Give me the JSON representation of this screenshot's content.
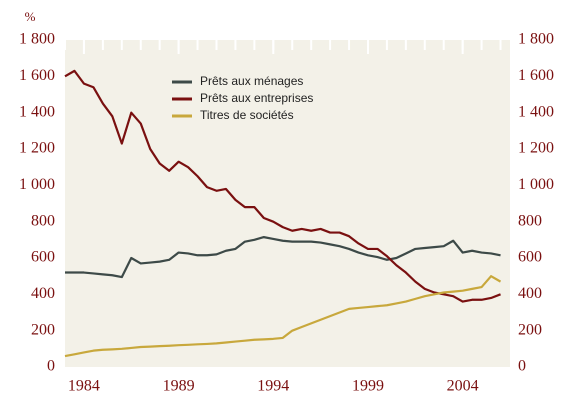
{
  "chart_data": {
    "type": "line",
    "y_unit": "%",
    "x": [
      1983,
      1983.5,
      1984,
      1984.5,
      1985,
      1985.5,
      1986,
      1986.5,
      1987,
      1987.5,
      1988,
      1988.5,
      1989,
      1989.5,
      1990,
      1990.5,
      1991,
      1991.5,
      1992,
      1992.5,
      1993,
      1993.5,
      1994,
      1994.5,
      1995,
      1995.5,
      1996,
      1996.5,
      1997,
      1997.5,
      1998,
      1998.5,
      1999,
      1999.5,
      2000,
      2000.5,
      2001,
      2001.5,
      2002,
      2002.5,
      2003,
      2003.5,
      2004,
      2004.5,
      2005,
      2005.5,
      2006
    ],
    "series": [
      {
        "name": "Prêts aux ménages",
        "color": "#3d4a48",
        "values": [
          520,
          520,
          520,
          515,
          510,
          505,
          495,
          600,
          570,
          575,
          580,
          590,
          630,
          625,
          615,
          615,
          620,
          640,
          650,
          690,
          700,
          715,
          705,
          695,
          690,
          690,
          690,
          685,
          675,
          665,
          650,
          630,
          615,
          605,
          590,
          600,
          625,
          650,
          655,
          660,
          665,
          695,
          630,
          640,
          630,
          625,
          615
        ]
      },
      {
        "name": "Prêts aux entreprises",
        "color": "#7a1010",
        "values": [
          1600,
          1630,
          1560,
          1540,
          1450,
          1380,
          1230,
          1400,
          1340,
          1200,
          1120,
          1080,
          1130,
          1100,
          1050,
          990,
          970,
          980,
          920,
          880,
          880,
          820,
          800,
          770,
          750,
          760,
          750,
          760,
          740,
          740,
          720,
          680,
          650,
          650,
          610,
          560,
          520,
          470,
          430,
          410,
          400,
          390,
          360,
          370,
          370,
          380,
          400
        ]
      },
      {
        "name": "Titres de sociétés",
        "color": "#c8a83c",
        "values": [
          60,
          70,
          80,
          90,
          95,
          97,
          100,
          105,
          110,
          112,
          115,
          117,
          120,
          122,
          125,
          127,
          130,
          135,
          140,
          145,
          150,
          152,
          155,
          160,
          200,
          220,
          240,
          260,
          280,
          300,
          320,
          325,
          330,
          335,
          340,
          350,
          360,
          375,
          390,
          400,
          410,
          415,
          420,
          430,
          440,
          500,
          470
        ]
      }
    ],
    "xlim": [
      1983,
      2006.5
    ],
    "xticks": [
      1984,
      1989,
      1994,
      1999,
      2004
    ],
    "ylim": [
      0,
      1800
    ],
    "yticks": [
      0,
      200,
      400,
      600,
      800,
      {
        "value": 1000,
        "label": "1 000"
      },
      {
        "value": 1200,
        "label": "1 200"
      },
      {
        "value": 1400,
        "label": "1 400"
      },
      {
        "value": 1600,
        "label": "1 600"
      },
      {
        "value": 1800,
        "label": "1 800"
      }
    ],
    "y2lim": [
      0,
      1800
    ],
    "y2ticks": [
      0,
      200,
      400,
      600,
      800,
      {
        "value": 1000,
        "label": "1 000"
      },
      {
        "value": 1200,
        "label": "1 200"
      },
      {
        "value": 1400,
        "label": "1 400"
      },
      {
        "value": 1600,
        "label": "1 600"
      },
      {
        "value": 1800,
        "label": "1 800"
      }
    ],
    "plot_background": "#f3f1e8"
  }
}
